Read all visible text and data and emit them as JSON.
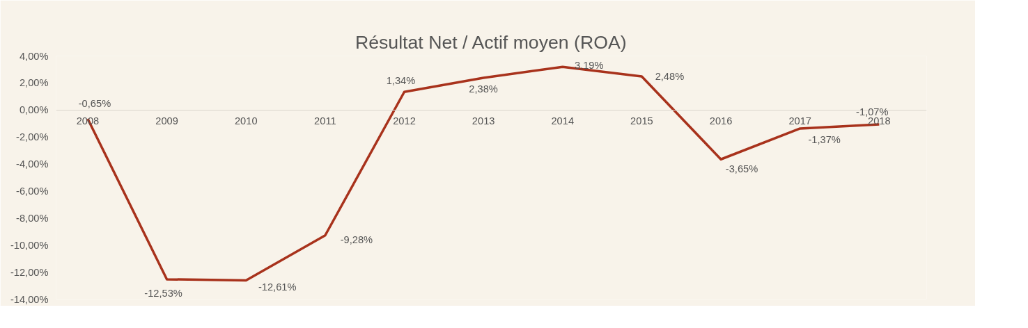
{
  "chart_data": {
    "type": "line",
    "title": "Résultat Net / Actif moyen (ROA)",
    "categories": [
      "2008",
      "2009",
      "2010",
      "2011",
      "2012",
      "2013",
      "2014",
      "2015",
      "2016",
      "2017",
      "2018"
    ],
    "series": [
      {
        "color": "#a8321c",
        "values": [
          -0.65,
          -12.53,
          -12.61,
          -9.28,
          1.34,
          2.38,
          3.19,
          2.48,
          -3.65,
          -1.37,
          -1.07
        ],
        "value_labels": [
          "-0,65%",
          "-12,53%",
          "-12,61%",
          "-9,28%",
          "1,34%",
          "2,38%",
          "3,19%",
          "2,48%",
          "-3,65%",
          "-1,37%",
          "-1,07%"
        ]
      }
    ],
    "ylim": [
      -14,
      4
    ],
    "yticks": [
      {
        "value": -14,
        "label": "-14,00%"
      },
      {
        "value": -12,
        "label": "-12,00%"
      },
      {
        "value": -10,
        "label": "-10,00%"
      },
      {
        "value": -8,
        "label": "-8,00%"
      },
      {
        "value": -6,
        "label": "-6,00%"
      },
      {
        "value": -4,
        "label": "-4,00%"
      },
      {
        "value": -2,
        "label": "-2,00%"
      },
      {
        "value": 0,
        "label": "0,00%"
      },
      {
        "value": 2,
        "label": "2,00%"
      },
      {
        "value": 4,
        "label": "4,00%"
      }
    ],
    "grid": false,
    "marker": "none",
    "line_style": "solid"
  }
}
